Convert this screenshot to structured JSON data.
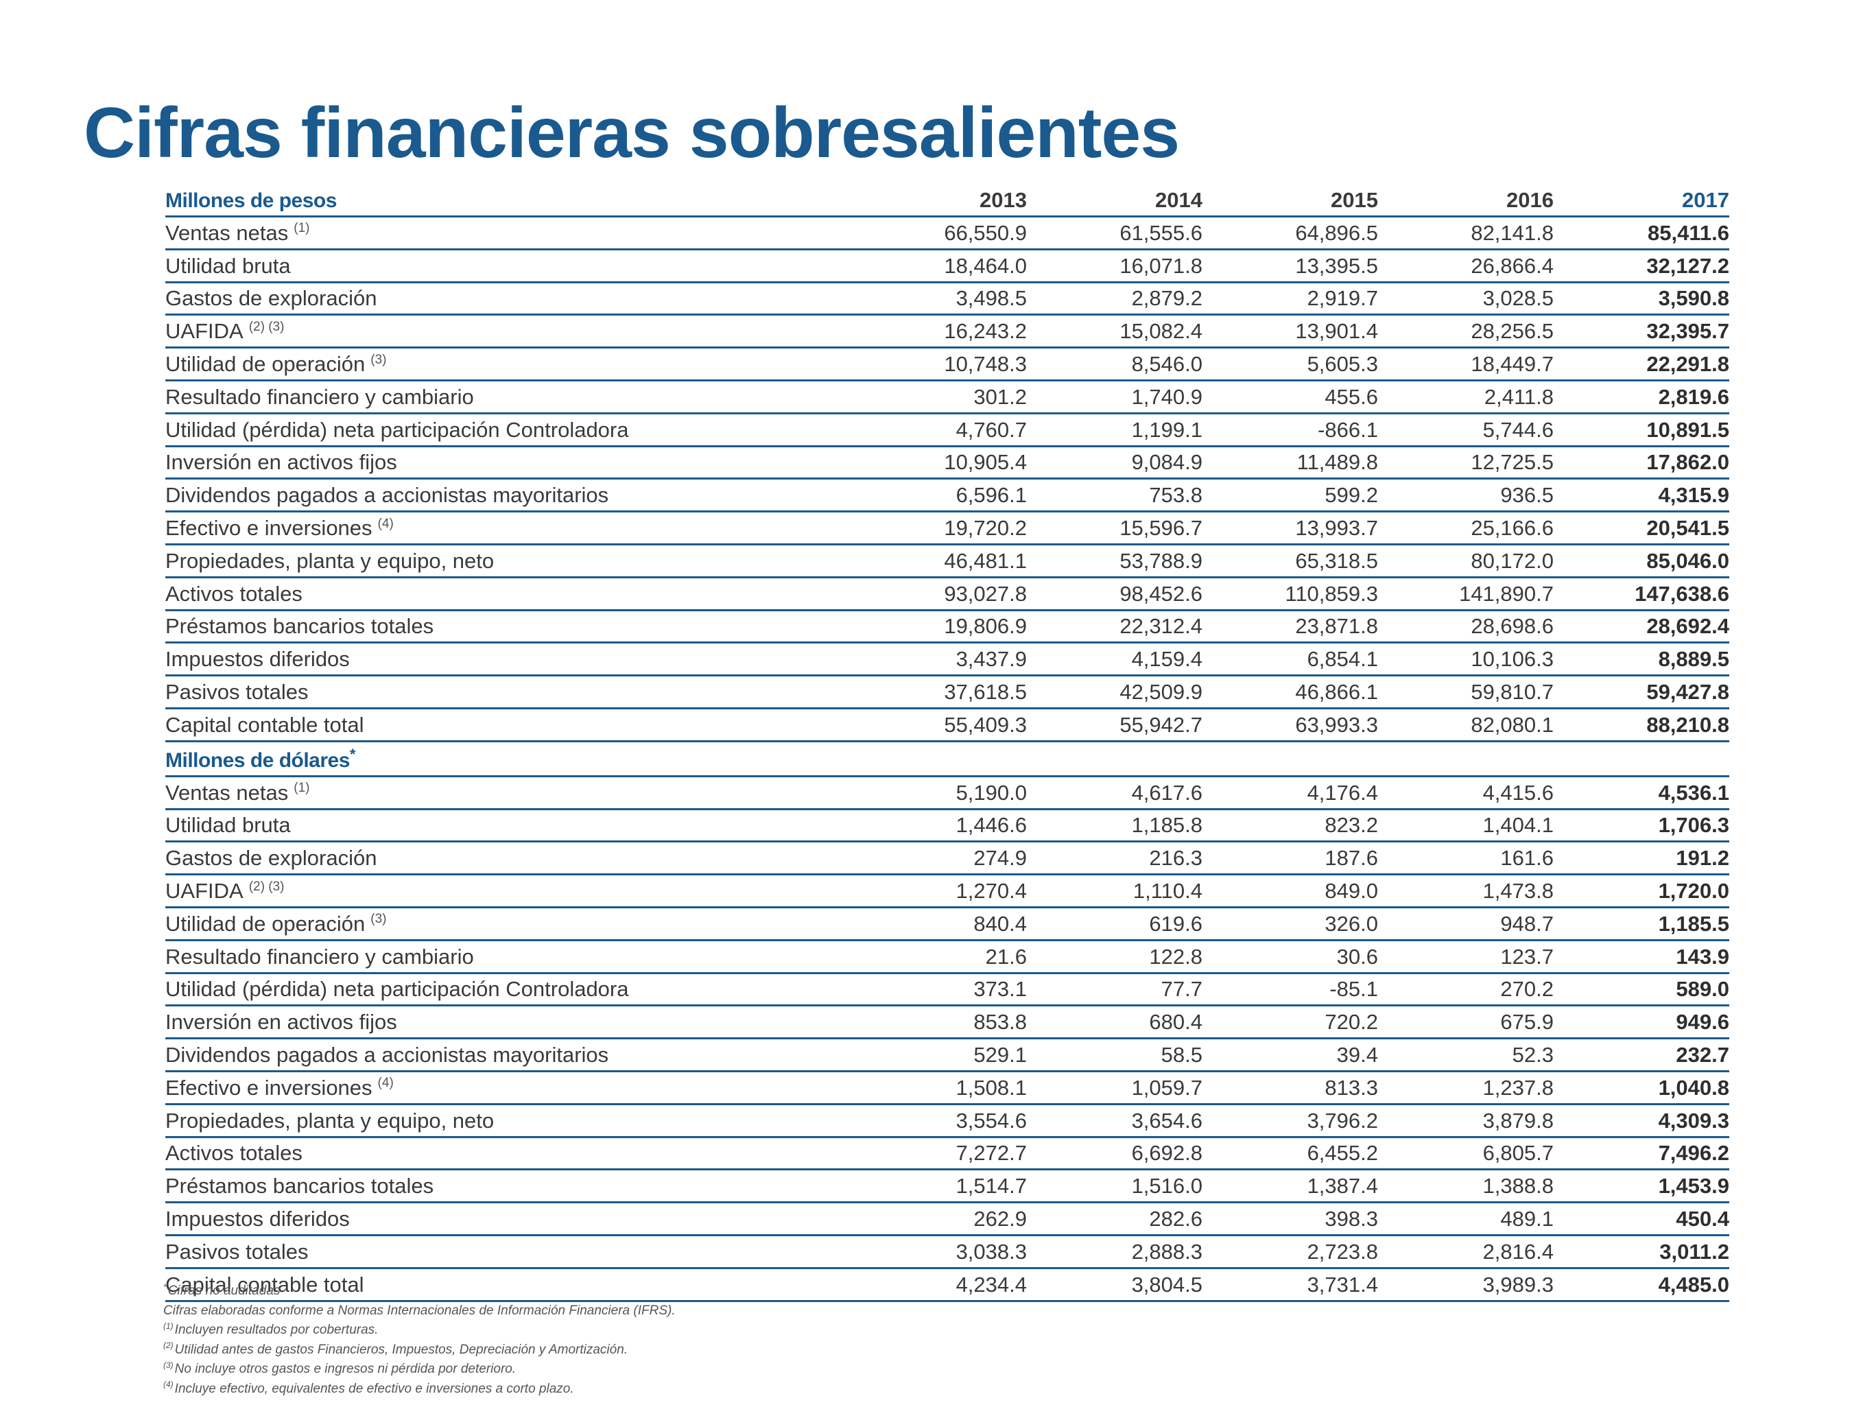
{
  "page": {
    "title": "Cifras financieras sobresalientes"
  },
  "colors": {
    "accent": "#1a5a8e",
    "text": "#3a3a3a"
  },
  "table": {
    "years": [
      "2013",
      "2014",
      "2015",
      "2016",
      "2017"
    ],
    "sections": [
      {
        "label": "Millones de pesos",
        "marker": "",
        "rows": [
          {
            "label": "Ventas netas",
            "note": "(1)",
            "values": [
              "66,550.9",
              "61,555.6",
              "64,896.5",
              "82,141.8",
              "85,411.6"
            ]
          },
          {
            "label": "Utilidad bruta",
            "note": "",
            "values": [
              "18,464.0",
              "16,071.8",
              "13,395.5",
              "26,866.4",
              "32,127.2"
            ]
          },
          {
            "label": "Gastos de exploración",
            "note": "",
            "values": [
              "3,498.5",
              "2,879.2",
              "2,919.7",
              "3,028.5",
              "3,590.8"
            ]
          },
          {
            "label": "UAFIDA",
            "note": "(2) (3)",
            "values": [
              "16,243.2",
              "15,082.4",
              "13,901.4",
              "28,256.5",
              "32,395.7"
            ]
          },
          {
            "label": "Utilidad de operación",
            "note": "(3)",
            "values": [
              "10,748.3",
              "8,546.0",
              "5,605.3",
              "18,449.7",
              "22,291.8"
            ]
          },
          {
            "label": "Resultado financiero y cambiario",
            "note": "",
            "values": [
              "301.2",
              "1,740.9",
              "455.6",
              "2,411.8",
              "2,819.6"
            ]
          },
          {
            "label": "Utilidad (pérdida) neta participación Controladora",
            "note": "",
            "values": [
              "4,760.7",
              "1,199.1",
              "-866.1",
              "5,744.6",
              "10,891.5"
            ]
          },
          {
            "label": "Inversión en activos fijos",
            "note": "",
            "values": [
              "10,905.4",
              "9,084.9",
              "11,489.8",
              "12,725.5",
              "17,862.0"
            ]
          },
          {
            "label": "Dividendos pagados a accionistas mayoritarios",
            "note": "",
            "values": [
              "6,596.1",
              "753.8",
              "599.2",
              "936.5",
              "4,315.9"
            ]
          },
          {
            "label": "Efectivo e inversiones",
            "note": "(4)",
            "values": [
              "19,720.2",
              "15,596.7",
              "13,993.7",
              "25,166.6",
              "20,541.5"
            ]
          },
          {
            "label": "Propiedades, planta y equipo, neto",
            "note": "",
            "values": [
              "46,481.1",
              "53,788.9",
              "65,318.5",
              "80,172.0",
              "85,046.0"
            ]
          },
          {
            "label": "Activos totales",
            "note": "",
            "values": [
              "93,027.8",
              "98,452.6",
              "110,859.3",
              "141,890.7",
              "147,638.6"
            ]
          },
          {
            "label": "Préstamos bancarios totales",
            "note": "",
            "values": [
              "19,806.9",
              "22,312.4",
              "23,871.8",
              "28,698.6",
              "28,692.4"
            ]
          },
          {
            "label": "Impuestos diferidos",
            "note": "",
            "values": [
              "3,437.9",
              "4,159.4",
              "6,854.1",
              "10,106.3",
              "8,889.5"
            ]
          },
          {
            "label": "Pasivos totales",
            "note": "",
            "values": [
              "37,618.5",
              "42,509.9",
              "46,866.1",
              "59,810.7",
              "59,427.8"
            ]
          },
          {
            "label": "Capital contable total",
            "note": "",
            "values": [
              "55,409.3",
              "55,942.7",
              "63,993.3",
              "82,080.1",
              "88,210.8"
            ]
          }
        ]
      },
      {
        "label": "Millones de dólares",
        "marker": "*",
        "rows": [
          {
            "label": "Ventas netas",
            "note": "(1)",
            "values": [
              "5,190.0",
              "4,617.6",
              "4,176.4",
              "4,415.6",
              "4,536.1"
            ]
          },
          {
            "label": "Utilidad bruta",
            "note": "",
            "values": [
              "1,446.6",
              "1,185.8",
              "823.2",
              "1,404.1",
              "1,706.3"
            ]
          },
          {
            "label": "Gastos de exploración",
            "note": "",
            "values": [
              "274.9",
              "216.3",
              "187.6",
              "161.6",
              "191.2"
            ]
          },
          {
            "label": "UAFIDA",
            "note": "(2) (3)",
            "values": [
              "1,270.4",
              "1,110.4",
              "849.0",
              "1,473.8",
              "1,720.0"
            ]
          },
          {
            "label": "Utilidad de operación",
            "note": "(3)",
            "values": [
              "840.4",
              "619.6",
              "326.0",
              "948.7",
              "1,185.5"
            ]
          },
          {
            "label": "Resultado financiero y cambiario",
            "note": "",
            "values": [
              "21.6",
              "122.8",
              "30.6",
              "123.7",
              "143.9"
            ]
          },
          {
            "label": "Utilidad (pérdida) neta participación Controladora",
            "note": "",
            "values": [
              "373.1",
              "77.7",
              "-85.1",
              "270.2",
              "589.0"
            ]
          },
          {
            "label": "Inversión en activos fijos",
            "note": "",
            "values": [
              "853.8",
              "680.4",
              "720.2",
              "675.9",
              "949.6"
            ]
          },
          {
            "label": "Dividendos pagados a accionistas mayoritarios",
            "note": "",
            "values": [
              "529.1",
              "58.5",
              "39.4",
              "52.3",
              "232.7"
            ]
          },
          {
            "label": "Efectivo e inversiones",
            "note": "(4)",
            "values": [
              "1,508.1",
              "1,059.7",
              "813.3",
              "1,237.8",
              "1,040.8"
            ]
          },
          {
            "label": "Propiedades, planta y equipo, neto",
            "note": "",
            "values": [
              "3,554.6",
              "3,654.6",
              "3,796.2",
              "3,879.8",
              "4,309.3"
            ]
          },
          {
            "label": "Activos totales",
            "note": "",
            "values": [
              "7,272.7",
              "6,692.8",
              "6,455.2",
              "6,805.7",
              "7,496.2"
            ]
          },
          {
            "label": "Préstamos bancarios totales",
            "note": "",
            "values": [
              "1,514.7",
              "1,516.0",
              "1,387.4",
              "1,388.8",
              "1,453.9"
            ]
          },
          {
            "label": "Impuestos diferidos",
            "note": "",
            "values": [
              "262.9",
              "282.6",
              "398.3",
              "489.1",
              "450.4"
            ]
          },
          {
            "label": "Pasivos totales",
            "note": "",
            "values": [
              "3,038.3",
              "2,888.3",
              "2,723.8",
              "2,816.4",
              "3,011.2"
            ]
          },
          {
            "label": "Capital contable total",
            "note": "",
            "values": [
              "4,234.4",
              "3,804.5",
              "3,731.4",
              "3,989.3",
              "4,485.0"
            ]
          }
        ]
      }
    ]
  },
  "footnotes": [
    {
      "mark": "*",
      "text": "Cifras no auditadas"
    },
    {
      "mark": "",
      "text": "Cifras elaboradas conforme a Normas Internacionales de Información Financiera (IFRS)."
    },
    {
      "mark": "(1)",
      "text": "Incluyen resultados por coberturas."
    },
    {
      "mark": "(2)",
      "text": "Utilidad antes de gastos Financieros, Impuestos, Depreciación y Amortización."
    },
    {
      "mark": "(3)",
      "text": "No incluye otros gastos e ingresos ni pérdida por deterioro."
    },
    {
      "mark": "(4)",
      "text": "Incluye efectivo, equivalentes de efectivo e inversiones a corto plazo."
    }
  ]
}
